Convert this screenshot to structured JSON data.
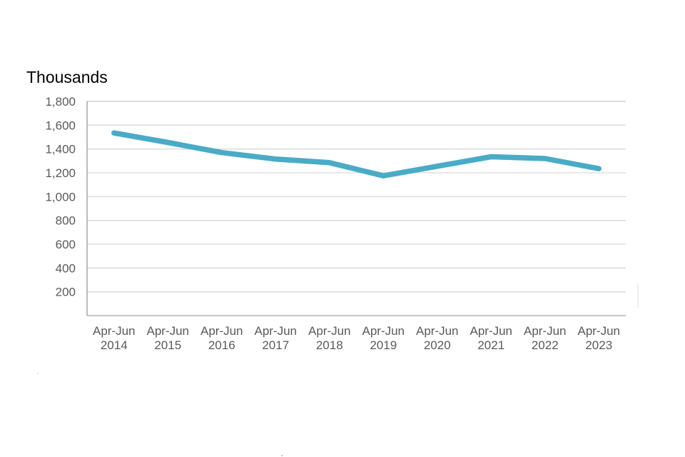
{
  "chart_data": {
    "type": "line",
    "title": "Thousands",
    "categories": [
      {
        "top": "Apr-Jun",
        "bottom": "2014"
      },
      {
        "top": "Apr-Jun",
        "bottom": "2015"
      },
      {
        "top": "Apr-Jun",
        "bottom": "2016"
      },
      {
        "top": "Apr-Jun",
        "bottom": "2017"
      },
      {
        "top": "Apr-Jun",
        "bottom": "2018"
      },
      {
        "top": "Apr-Jun",
        "bottom": "2019"
      },
      {
        "top": "Apr-Jun",
        "bottom": "2020"
      },
      {
        "top": "Apr-Jun",
        "bottom": "2021"
      },
      {
        "top": "Apr-Jun",
        "bottom": "2022"
      },
      {
        "top": "Apr-Jun",
        "bottom": "2023"
      }
    ],
    "values": [
      1535,
      1455,
      1370,
      1315,
      1285,
      1175,
      1255,
      1335,
      1320,
      1235
    ],
    "xlabel": "",
    "ylabel": "Thousands",
    "ylim": [
      0,
      1800
    ],
    "ytick_step": 200,
    "ytick_labels": [
      "200",
      "400",
      "600",
      "800",
      "1,000",
      "1,200",
      "1,400",
      "1,600",
      "1,800"
    ],
    "grid": true,
    "legend": "none",
    "colors": {
      "series": "#4aabc6",
      "gridline": "#d9d9d9",
      "plot_top_border": "#c6c6c6",
      "y_axis": "#a6a6a6",
      "x_axis": "#b3b3b3",
      "tick_label": "#595959",
      "title": "#000000",
      "background": "#ffffff"
    }
  }
}
